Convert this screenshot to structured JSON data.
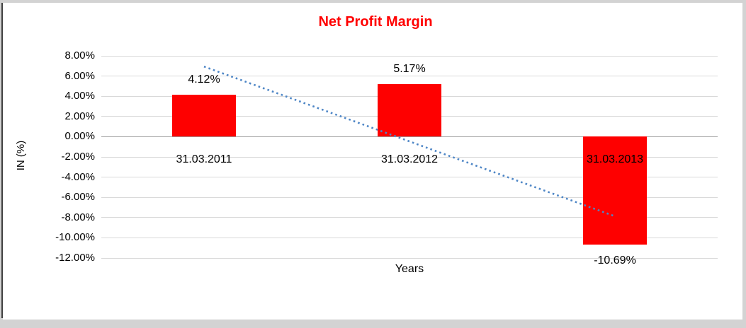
{
  "window": {
    "background_color": "#d3d3d3",
    "panel_color": "#ffffff",
    "left_border_color": "#3f3f3f"
  },
  "chart_data": {
    "type": "bar",
    "title": "Net Profit Margin",
    "title_color": "#ff0000",
    "xlabel": "Years",
    "ylabel": "IN (%)",
    "categories": [
      "31.03.2011",
      "31.03.2012",
      "31.03.2013"
    ],
    "series": [
      {
        "name": "Net Profit Margin",
        "color": "#fe0000",
        "values": [
          4.12,
          5.17,
          -10.69
        ],
        "data_labels": [
          "4.12%",
          "5.17%",
          "-10.69%"
        ]
      }
    ],
    "ylim": [
      -12,
      8
    ],
    "grid": true,
    "legend": "none",
    "yticks": [
      {
        "value": 8,
        "label": "8.00%"
      },
      {
        "value": 6,
        "label": "6.00%"
      },
      {
        "value": 4,
        "label": "4.00%"
      },
      {
        "value": 2,
        "label": "2.00%"
      },
      {
        "value": 0,
        "label": "0.00%"
      },
      {
        "value": -2,
        "label": "-2.00%"
      },
      {
        "value": -4,
        "label": "-4.00%"
      },
      {
        "value": -6,
        "label": "-6.00%"
      },
      {
        "value": -8,
        "label": "-8.00%"
      },
      {
        "value": -10,
        "label": "-10.00%"
      },
      {
        "value": -12,
        "label": "-12.00%"
      }
    ],
    "trendline": {
      "type": "linear",
      "style": "dotted",
      "color": "#4e86c6",
      "start": {
        "category_index": 0,
        "value": 6.94
      },
      "end": {
        "category_index": 2,
        "value": -7.87
      }
    }
  }
}
